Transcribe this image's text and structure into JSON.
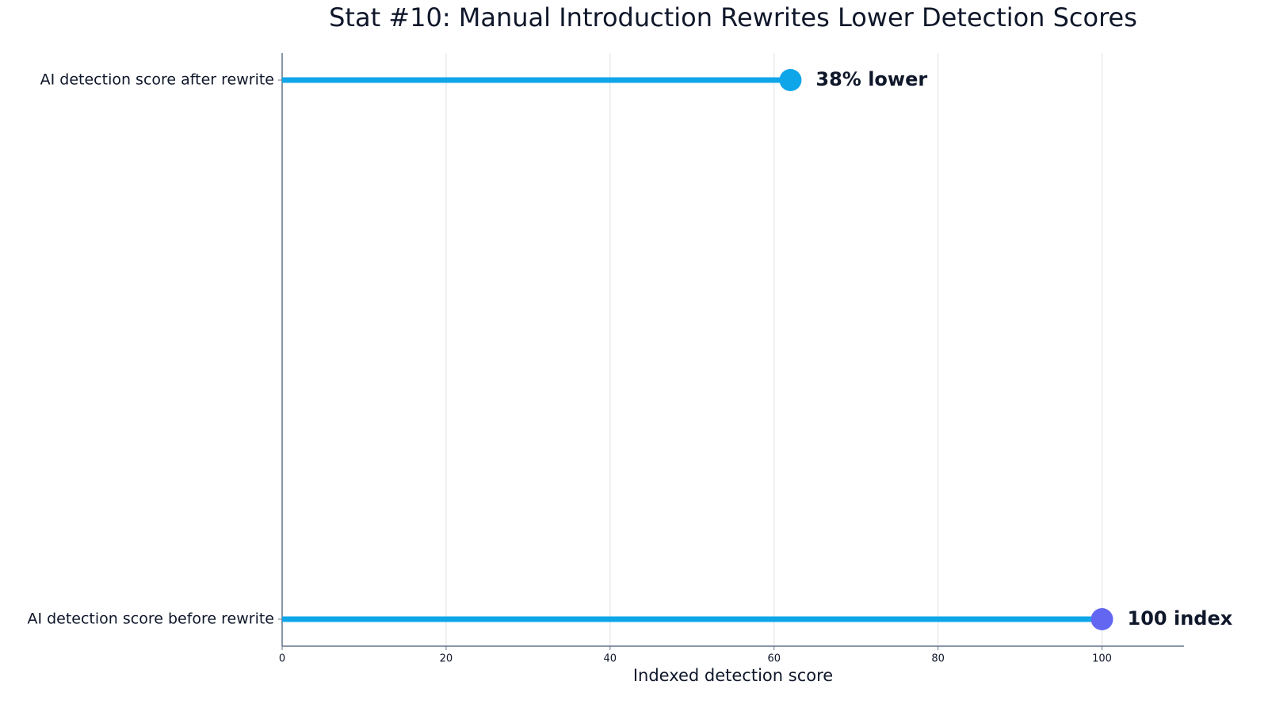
{
  "chart_data": {
    "type": "lollipop",
    "orientation": "horizontal",
    "title": "Stat #10: Manual Introduction Rewrites Lower Detection Scores",
    "x_label": "Indexed detection score",
    "categories": [
      "AI detection score before rewrite",
      "AI detection score after rewrite"
    ],
    "values": [
      100,
      62
    ],
    "annotations": [
      "100 index",
      "38% lower"
    ],
    "stem_color": "#0ea5e9",
    "dot_colors": [
      "#6366f1",
      "#0ea5e9"
    ],
    "xlim": [
      0,
      110
    ],
    "xticks": [
      0,
      20,
      40,
      60,
      80,
      100
    ],
    "grid": true
  }
}
